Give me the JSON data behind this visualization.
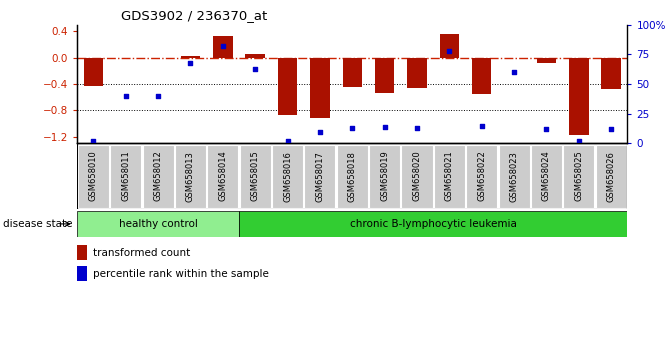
{
  "title": "GDS3902 / 236370_at",
  "samples": [
    "GSM658010",
    "GSM658011",
    "GSM658012",
    "GSM658013",
    "GSM658014",
    "GSM658015",
    "GSM658016",
    "GSM658017",
    "GSM658018",
    "GSM658019",
    "GSM658020",
    "GSM658021",
    "GSM658022",
    "GSM658023",
    "GSM658024",
    "GSM658025",
    "GSM658026"
  ],
  "red_bars": [
    -0.43,
    -0.01,
    -0.01,
    0.02,
    0.33,
    0.06,
    -0.87,
    -0.91,
    -0.44,
    -0.53,
    -0.46,
    0.36,
    -0.55,
    -0.01,
    -0.08,
    -1.18,
    -0.48
  ],
  "blue_dots": [
    2,
    40,
    40,
    68,
    82,
    63,
    2,
    10,
    13,
    14,
    13,
    78,
    15,
    60,
    12,
    2,
    12
  ],
  "groups": [
    {
      "label": "healthy control",
      "start": 0,
      "end": 5,
      "color": "#90EE90"
    },
    {
      "label": "chronic B-lymphocytic leukemia",
      "start": 5,
      "end": 17,
      "color": "#32CD32"
    }
  ],
  "ylim_left": [
    -1.3,
    0.5
  ],
  "ylim_right": [
    0,
    100
  ],
  "left_yticks": [
    -1.2,
    -0.8,
    -0.4,
    0.0,
    0.4
  ],
  "right_yticks": [
    0,
    25,
    50,
    75,
    100
  ],
  "right_yticklabels": [
    "0",
    "25",
    "50",
    "75",
    "100%"
  ],
  "bar_color": "#AA1100",
  "dot_color": "#0000CC",
  "hline_color": "#CC2200",
  "grid_color": "#000000",
  "bg_color": "#FFFFFF",
  "tick_box_color": "#CCCCCC",
  "disease_state_label": "disease state",
  "legend_bar_label": "transformed count",
  "legend_dot_label": "percentile rank within the sample"
}
